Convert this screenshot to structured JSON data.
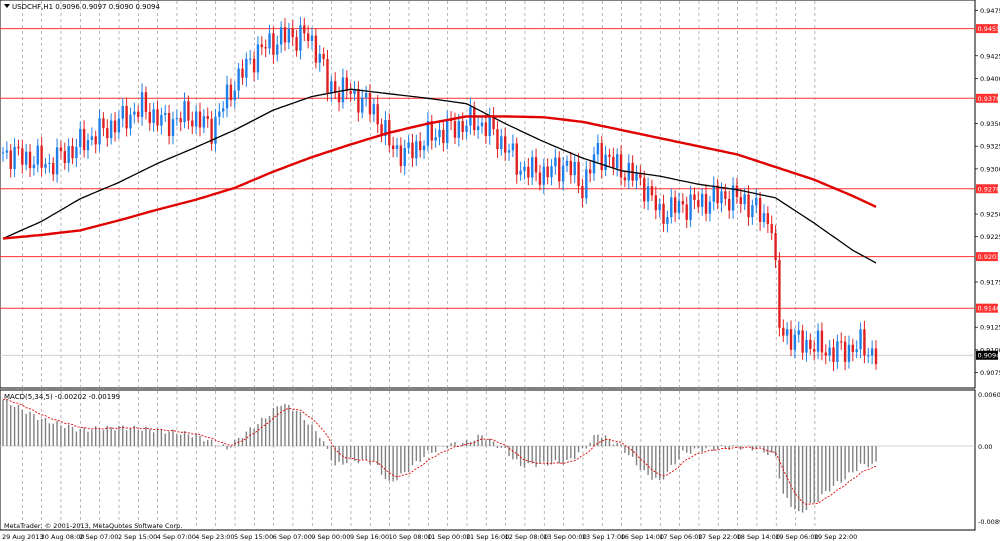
{
  "header": {
    "symbol_info": "USDCHF,H1  0.9096 0.9097 0.9090 0.9094",
    "menu_icon": "triangle-down-icon"
  },
  "macd_panel": {
    "label": "MACD(5,34,5) -0.00202 -0.00199",
    "scale_top": "0.00606",
    "scale_zero": "0.00",
    "scale_bottom": "-0.00897"
  },
  "footer": {
    "copyright": "MetaTrader, © 2001-2013, MetaQuotes Software Corp."
  },
  "colors": {
    "bull": "#1e7fe8",
    "bear": "#e02020",
    "ma_fast": "#000000",
    "ma_slow": "#e00000",
    "level_line": "#ff3030",
    "grid": "#9a9a9a",
    "macd_bar": "#808080",
    "macd_signal": "#e00000",
    "price_tag_bg": "#000000"
  },
  "chart_data": {
    "type": "candlestick",
    "symbol": "USDCHF",
    "timeframe": "H1",
    "ohlc_header": {
      "open": 0.9096,
      "high": 0.9097,
      "low": 0.909,
      "close": 0.9094
    },
    "price_axis": {
      "ticks": [
        "0.9475",
        "0.9425",
        "0.9400",
        "0.9350",
        "0.9325",
        "0.9300",
        "0.9250",
        "0.9225",
        "0.9175",
        "0.9125",
        "0.9100",
        "0.9075"
      ],
      "ylim": [
        0.906,
        0.948
      ]
    },
    "horizontal_levels": [
      {
        "value": 0.9455,
        "label": "0.9455"
      },
      {
        "value": 0.9378,
        "label": "0.9378"
      },
      {
        "value": 0.9278,
        "label": "0.9278"
      },
      {
        "value": 0.9203,
        "label": "0.9203"
      },
      {
        "value": 0.9146,
        "label": "0.9146"
      }
    ],
    "current_price": {
      "value": 0.9094,
      "label": "0.9094"
    },
    "x_labels": [
      "29 Aug 2013",
      "30 Aug 08:00",
      "2 Sep 07:00",
      "2 Sep 15:00",
      "4 Sep 07:00",
      "4 Sep 23:00",
      "5 Sep 15:00",
      "6 Sep 07:00",
      "9 Sep 00:00",
      "9 Sep 16:00",
      "10 Sep 08:00",
      "11 Sep 00:00",
      "11 Sep 16:00",
      "12 Sep 08:00",
      "13 Sep 00:00",
      "13 Sep 17:00",
      "16 Sep 14:00",
      "17 Sep 06:00",
      "17 Sep 22:00",
      "18 Sep 14:00",
      "19 Sep 06:00",
      "19 Sep 22:00"
    ],
    "price_path": [
      [
        0,
        0.9318
      ],
      [
        6,
        0.9312
      ],
      [
        12,
        0.9305
      ],
      [
        18,
        0.9322
      ],
      [
        24,
        0.9338
      ],
      [
        30,
        0.9352
      ],
      [
        36,
        0.9368
      ],
      [
        42,
        0.935
      ],
      [
        48,
        0.936
      ],
      [
        54,
        0.9345
      ],
      [
        60,
        0.9395
      ],
      [
        66,
        0.943
      ],
      [
        72,
        0.9445
      ],
      [
        78,
        0.9448
      ],
      [
        82,
        0.9428
      ],
      [
        84,
        0.939
      ],
      [
        90,
        0.9385
      ],
      [
        96,
        0.9365
      ],
      [
        100,
        0.9328
      ],
      [
        104,
        0.9315
      ],
      [
        110,
        0.9335
      ],
      [
        116,
        0.9345
      ],
      [
        122,
        0.9352
      ],
      [
        126,
        0.9345
      ],
      [
        130,
        0.9325
      ],
      [
        134,
        0.93
      ],
      [
        140,
        0.9295
      ],
      [
        146,
        0.9305
      ],
      [
        150,
        0.928
      ],
      [
        154,
        0.932
      ],
      [
        158,
        0.9305
      ],
      [
        162,
        0.9295
      ],
      [
        166,
        0.9282
      ],
      [
        170,
        0.925
      ],
      [
        176,
        0.926
      ],
      [
        180,
        0.9262
      ],
      [
        186,
        0.927
      ],
      [
        192,
        0.9265
      ],
      [
        196,
        0.925
      ],
      [
        199,
        0.924
      ],
      [
        201,
        0.9125
      ],
      [
        205,
        0.911
      ],
      [
        210,
        0.9105
      ],
      [
        214,
        0.9098
      ],
      [
        218,
        0.91
      ],
      [
        222,
        0.9105
      ],
      [
        226,
        0.9094
      ]
    ],
    "series": [
      {
        "name": "",
        "kind": "moving-average",
        "points": [
          [
            0,
            0.9223
          ],
          [
            10,
            0.9242
          ],
          [
            20,
            0.9267
          ],
          [
            30,
            0.9285
          ],
          [
            40,
            0.9306
          ],
          [
            50,
            0.9324
          ],
          [
            60,
            0.9343
          ],
          [
            70,
            0.9365
          ],
          [
            80,
            0.938
          ],
          [
            90,
            0.9388
          ],
          [
            100,
            0.9383
          ],
          [
            110,
            0.9378
          ],
          [
            120,
            0.9372
          ],
          [
            130,
            0.935
          ],
          [
            140,
            0.933
          ],
          [
            150,
            0.9312
          ],
          [
            160,
            0.9298
          ],
          [
            170,
            0.9292
          ],
          [
            180,
            0.9283
          ],
          [
            190,
            0.9277
          ],
          [
            200,
            0.9268
          ],
          [
            210,
            0.924
          ],
          [
            220,
            0.921
          ],
          [
            226,
            0.9196
          ]
        ]
      },
      {
        "name": "",
        "kind": "moving-average",
        "points": [
          [
            0,
            0.9223
          ],
          [
            10,
            0.9227
          ],
          [
            20,
            0.9232
          ],
          [
            30,
            0.9243
          ],
          [
            40,
            0.9255
          ],
          [
            50,
            0.9266
          ],
          [
            60,
            0.9279
          ],
          [
            70,
            0.9297
          ],
          [
            80,
            0.9313
          ],
          [
            90,
            0.9327
          ],
          [
            100,
            0.934
          ],
          [
            110,
            0.935
          ],
          [
            120,
            0.9358
          ],
          [
            130,
            0.9358
          ],
          [
            140,
            0.9357
          ],
          [
            150,
            0.9352
          ],
          [
            160,
            0.9343
          ],
          [
            170,
            0.9334
          ],
          [
            180,
            0.9325
          ],
          [
            190,
            0.9316
          ],
          [
            200,
            0.9302
          ],
          [
            210,
            0.9288
          ],
          [
            220,
            0.927
          ],
          [
            226,
            0.9258
          ]
        ]
      }
    ],
    "macd": {
      "ylim": [
        -0.00897,
        0.00606
      ],
      "histogram_path": [
        [
          0,
          0.0052
        ],
        [
          10,
          0.003
        ],
        [
          20,
          0.0018
        ],
        [
          30,
          0.0021
        ],
        [
          40,
          0.0018
        ],
        [
          50,
          0.0012
        ],
        [
          58,
          -0.0003
        ],
        [
          62,
          0.0012
        ],
        [
          68,
          0.0032
        ],
        [
          72,
          0.0048
        ],
        [
          76,
          0.004
        ],
        [
          82,
          0.0012
        ],
        [
          86,
          -0.0022
        ],
        [
          90,
          -0.0016
        ],
        [
          96,
          -0.0018
        ],
        [
          100,
          -0.0042
        ],
        [
          104,
          -0.003
        ],
        [
          110,
          -0.0008
        ],
        [
          116,
          0.0002
        ],
        [
          120,
          0.0004
        ],
        [
          124,
          0.0012
        ],
        [
          130,
          -0.0005
        ],
        [
          134,
          -0.0022
        ],
        [
          140,
          -0.002
        ],
        [
          146,
          -0.0018
        ],
        [
          150,
          -0.0005
        ],
        [
          154,
          0.0014
        ],
        [
          160,
          0.0
        ],
        [
          166,
          -0.003
        ],
        [
          170,
          -0.004
        ],
        [
          176,
          -0.0008
        ],
        [
          180,
          -0.0004
        ],
        [
          186,
          -0.0002
        ],
        [
          192,
          -0.0001
        ],
        [
          196,
          -0.0004
        ],
        [
          200,
          -0.0012
        ],
        [
          202,
          -0.0055
        ],
        [
          206,
          -0.0076
        ],
        [
          210,
          -0.0064
        ],
        [
          214,
          -0.0048
        ],
        [
          218,
          -0.0036
        ],
        [
          222,
          -0.0022
        ],
        [
          226,
          -0.002
        ]
      ],
      "signal_label": "",
      "zero_label": "0.00"
    }
  }
}
